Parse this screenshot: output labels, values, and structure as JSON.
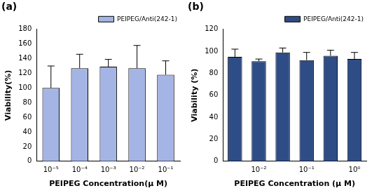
{
  "chart_data": [
    {
      "type": "bar",
      "title": "(a)",
      "categories": [
        "10⁻⁵",
        "10⁻⁴",
        "10⁻³",
        "10⁻²",
        "10⁻¹"
      ],
      "series": [
        {
          "name": "PEIPEG/Anti(242-1)",
          "color": "#a4b4e4",
          "values": [
            100,
            127,
            129,
            127,
            118
          ],
          "errors": [
            30,
            19,
            10,
            31,
            19
          ]
        }
      ],
      "x_label": "PEIPEG Concentration(μ M)",
      "y_label": "Viability(%)",
      "ylim": [
        0,
        180
      ],
      "yticks": [
        0,
        20,
        40,
        60,
        80,
        100,
        120,
        140,
        160,
        180
      ],
      "legend": "top-right",
      "grid": false
    },
    {
      "type": "bar",
      "title": "(b)",
      "categories": [
        null,
        "10⁻²",
        null,
        "10⁻¹",
        null,
        "10⁰"
      ],
      "series": [
        {
          "name": "PEIPEG/Anti(242-1)",
          "color": "#2e4d86",
          "values": [
            95,
            91,
            99,
            92,
            96,
            93
          ],
          "errors": [
            7,
            2,
            4,
            7,
            5,
            6
          ]
        }
      ],
      "x_label": "PEIPEG Concentration (μ M)",
      "y_label": "Viability (%)",
      "ylim": [
        0,
        120
      ],
      "yticks": [
        0,
        20,
        40,
        60,
        80,
        100,
        120
      ],
      "legend": "top-right",
      "grid": false
    }
  ]
}
